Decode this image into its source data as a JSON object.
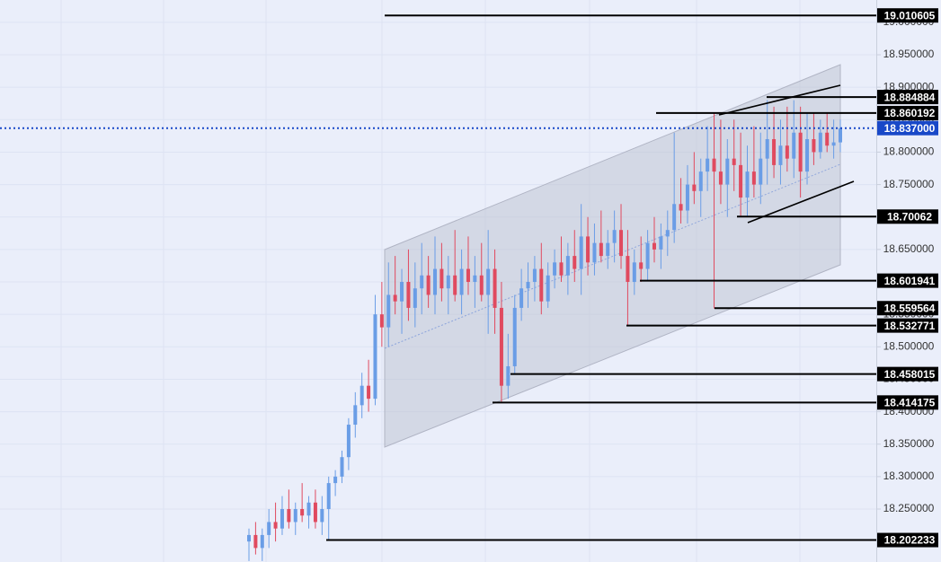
{
  "chart_data": {
    "type": "candlestick",
    "open": [
      18.2,
      18.21,
      18.19,
      18.21,
      18.23,
      18.22,
      18.25,
      18.23,
      18.25,
      18.24,
      18.26,
      18.23,
      18.25,
      18.29,
      18.3,
      18.33,
      18.38,
      18.41,
      18.44,
      18.42,
      18.55,
      18.53,
      18.58,
      18.57,
      18.6,
      18.56,
      18.59,
      18.61,
      18.58,
      18.62,
      18.59,
      18.61,
      18.58,
      18.62,
      18.6,
      18.61,
      18.58,
      18.62,
      18.56,
      18.44,
      18.47,
      18.56,
      18.59,
      18.6,
      18.62,
      18.57,
      18.61,
      18.63,
      18.61,
      18.64,
      18.62,
      18.67,
      18.63,
      18.66,
      18.64,
      18.66,
      18.68,
      18.64,
      18.6,
      18.63,
      18.62,
      18.66,
      18.65,
      18.67,
      18.68,
      18.72,
      18.71,
      18.75,
      18.74,
      18.77,
      18.79,
      18.77,
      18.75,
      18.79,
      18.78,
      18.73,
      18.77,
      18.75,
      18.79,
      18.82,
      18.78,
      18.81,
      18.79,
      18.83,
      18.77,
      18.82,
      18.8,
      18.83,
      18.81,
      18.815
    ],
    "high": [
      18.22,
      18.23,
      18.22,
      18.25,
      18.26,
      18.27,
      18.28,
      18.26,
      18.29,
      18.27,
      18.28,
      18.27,
      18.3,
      18.31,
      18.34,
      18.39,
      18.43,
      18.46,
      18.48,
      18.58,
      18.6,
      18.63,
      18.64,
      18.62,
      18.65,
      18.63,
      18.66,
      18.64,
      18.67,
      18.66,
      18.64,
      18.68,
      18.65,
      18.67,
      18.64,
      18.66,
      18.68,
      18.65,
      18.6,
      18.52,
      18.58,
      18.62,
      18.63,
      18.64,
      18.66,
      18.63,
      18.65,
      18.67,
      18.66,
      18.68,
      18.72,
      18.7,
      18.69,
      18.71,
      18.68,
      18.71,
      18.72,
      18.68,
      18.65,
      18.67,
      18.68,
      18.7,
      18.69,
      18.71,
      18.83,
      18.76,
      18.78,
      18.8,
      18.79,
      18.84,
      18.86,
      18.85,
      18.82,
      18.85,
      18.83,
      18.81,
      18.84,
      18.83,
      18.88,
      18.87,
      18.85,
      18.87,
      18.88,
      18.87,
      18.86,
      18.86,
      18.85,
      18.86,
      18.85,
      18.85
    ],
    "low": [
      18.17,
      18.18,
      18.17,
      18.19,
      18.2,
      18.21,
      18.22,
      18.21,
      18.23,
      18.22,
      18.22,
      18.21,
      18.202,
      18.27,
      18.29,
      18.31,
      18.36,
      18.39,
      18.4,
      18.41,
      18.5,
      18.5,
      18.55,
      18.52,
      18.54,
      18.53,
      18.55,
      18.56,
      18.55,
      18.57,
      18.55,
      18.57,
      18.55,
      18.58,
      18.56,
      18.57,
      18.52,
      18.52,
      18.414,
      18.42,
      18.458,
      18.54,
      18.56,
      18.57,
      18.55,
      18.56,
      18.59,
      18.6,
      18.58,
      18.6,
      18.58,
      18.61,
      18.61,
      18.63,
      18.62,
      18.63,
      18.62,
      18.532,
      18.58,
      18.6,
      18.601,
      18.63,
      18.62,
      18.64,
      18.66,
      18.69,
      18.69,
      18.72,
      18.7,
      18.74,
      18.559,
      18.72,
      18.7,
      18.74,
      18.7,
      18.7,
      18.73,
      18.72,
      18.75,
      18.76,
      18.75,
      18.77,
      18.76,
      18.73,
      18.75,
      18.78,
      18.79,
      18.8,
      18.79,
      18.8
    ],
    "close": [
      18.21,
      18.19,
      18.21,
      18.23,
      18.22,
      18.25,
      18.23,
      18.25,
      18.24,
      18.26,
      18.23,
      18.25,
      18.29,
      18.3,
      18.33,
      18.38,
      18.41,
      18.44,
      18.42,
      18.55,
      18.53,
      18.58,
      18.57,
      18.6,
      18.56,
      18.59,
      18.61,
      18.58,
      18.62,
      18.59,
      18.61,
      18.58,
      18.62,
      18.6,
      18.61,
      18.58,
      18.62,
      18.56,
      18.44,
      18.47,
      18.56,
      18.59,
      18.6,
      18.62,
      18.57,
      18.61,
      18.63,
      18.61,
      18.64,
      18.62,
      18.67,
      18.63,
      18.66,
      18.64,
      18.66,
      18.68,
      18.64,
      18.6,
      18.63,
      18.62,
      18.66,
      18.65,
      18.67,
      18.68,
      18.72,
      18.71,
      18.75,
      18.74,
      18.77,
      18.79,
      18.77,
      18.75,
      18.79,
      18.78,
      18.73,
      18.77,
      18.75,
      18.79,
      18.82,
      18.78,
      18.81,
      18.79,
      18.83,
      18.77,
      18.82,
      18.8,
      18.83,
      18.81,
      18.815,
      18.837
    ],
    "up_color": "#6a9de6",
    "down_color": "#e04a5f",
    "ylim": [
      18.1684,
      19.0344
    ],
    "yticks": [
      {
        "value": 18.25,
        "label": "18.250000"
      },
      {
        "value": 18.3,
        "label": "18.300000"
      },
      {
        "value": 18.35,
        "label": "18.350000"
      },
      {
        "value": 18.4,
        "label": "18.400000"
      },
      {
        "value": 18.45,
        "label": "18.450000"
      },
      {
        "value": 18.5,
        "label": "18.500000"
      },
      {
        "value": 18.55,
        "label": "18.550000"
      },
      {
        "value": 18.6,
        "label": "18.600000"
      },
      {
        "value": 18.65,
        "label": "18.650000"
      },
      {
        "value": 18.7,
        "label": "18.700000"
      },
      {
        "value": 18.75,
        "label": "18.750000"
      },
      {
        "value": 18.8,
        "label": "18.800000"
      },
      {
        "value": 18.85,
        "label": "18.850000"
      },
      {
        "value": 18.9,
        "label": "18.900000"
      },
      {
        "value": 18.95,
        "label": "18.950000"
      },
      {
        "value": 19.0,
        "label": "19.000000"
      }
    ],
    "grid": true,
    "price_lines": [
      19.010605,
      18.884884,
      18.860192,
      18.70062,
      18.601941,
      18.559564,
      18.532771,
      18.458015,
      18.414175,
      18.202233
    ],
    "price_line_color": "#000000",
    "current_price": {
      "value": 18.837,
      "label": "18.837000"
    },
    "current_price_color": "#1848c8"
  }
}
